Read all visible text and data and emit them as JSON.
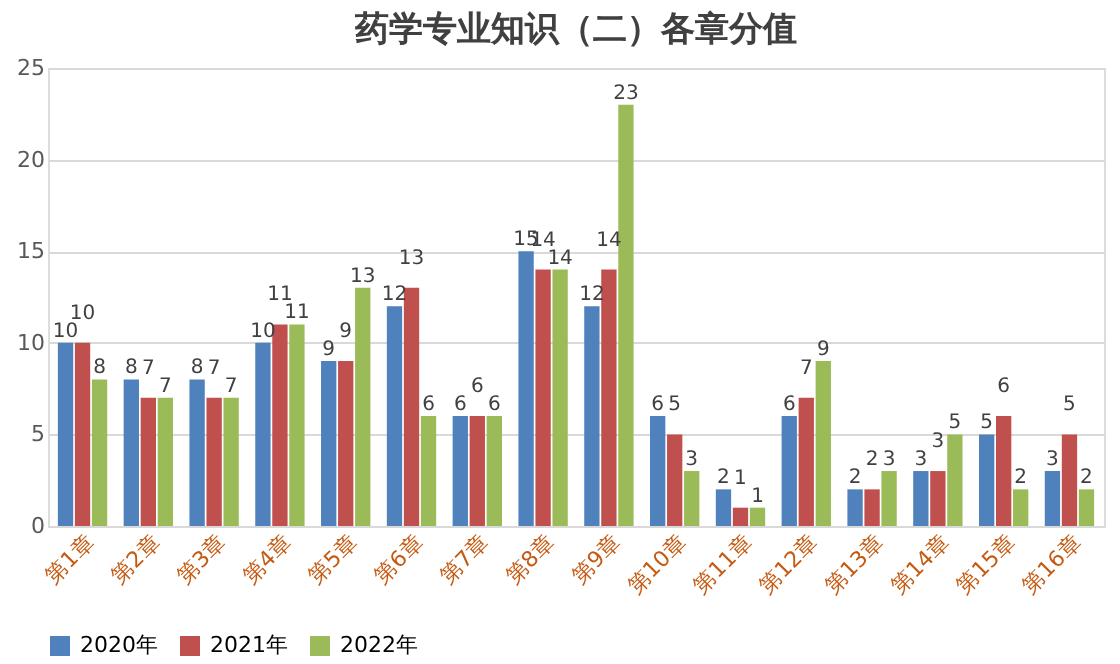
{
  "chart_data": {
    "type": "bar",
    "title": "药学专业知识（二）各章分值",
    "categories": [
      "第1章",
      "第2章",
      "第3章",
      "第4章",
      "第5章",
      "第6章",
      "第7章",
      "第8章",
      "第9章",
      "第10章",
      "第11章",
      "第12章",
      "第13章",
      "第14章",
      "第15章",
      "第16章"
    ],
    "series": [
      {
        "name": "2020年",
        "color": "#4f81bd",
        "values": [
          10,
          8,
          8,
          10,
          9,
          12,
          6,
          15,
          12,
          6,
          2,
          6,
          2,
          3,
          5,
          3
        ]
      },
      {
        "name": "2021年",
        "color": "#c0504d",
        "values": [
          10,
          7,
          7,
          11,
          9,
          13,
          6,
          14,
          14,
          5,
          1,
          7,
          2,
          3,
          6,
          5
        ]
      },
      {
        "name": "2022年",
        "color": "#9bbb59",
        "values": [
          8,
          7,
          7,
          11,
          13,
          6,
          6,
          14,
          23,
          3,
          1,
          9,
          3,
          5,
          2,
          2
        ]
      }
    ],
    "ylim": [
      0,
      25
    ],
    "yticks": [
      0,
      5,
      10,
      15,
      20,
      25
    ],
    "grid": "y",
    "legend": "bottom",
    "data_labels": true
  }
}
